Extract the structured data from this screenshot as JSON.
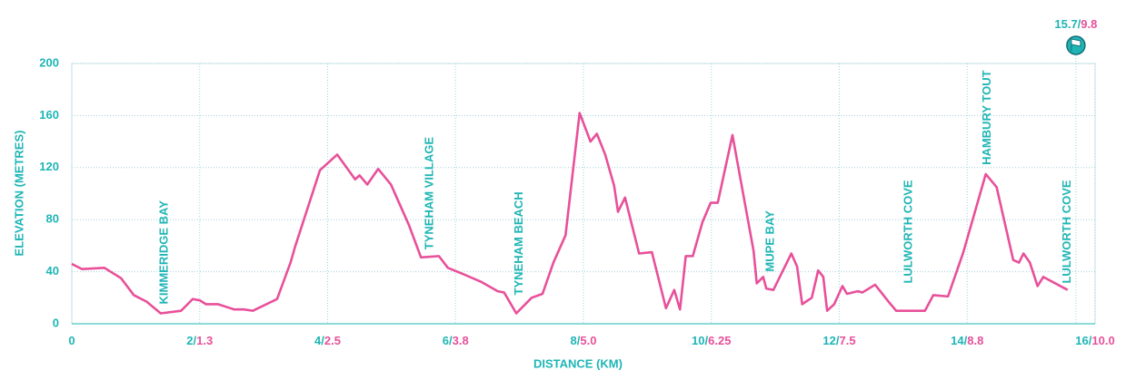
{
  "chart_data": {
    "type": "line",
    "x_label": "DISTANCE (KM)",
    "y_label": "ELEVATION (METRES)",
    "xlim": [
      0,
      16
    ],
    "ylim": [
      0,
      200
    ],
    "xticks": [
      0,
      {
        "value": 2,
        "label": "2/"
      },
      {
        "value": 4,
        "label": "4/"
      },
      {
        "value": 6,
        "label": "6/"
      },
      {
        "value": 8,
        "label": "8/"
      },
      {
        "value": 10,
        "label": "10/"
      },
      {
        "value": 12,
        "label": "12/"
      },
      {
        "value": 14,
        "label": "14/"
      },
      {
        "value": 16,
        "label": "16/"
      }
    ],
    "xtick_miles": [
      null,
      "1.3",
      "2.5",
      "3.8",
      "5.0",
      "6.25",
      "7.5",
      "8.8",
      "10.0"
    ],
    "yticks": [
      0,
      40,
      80,
      120,
      160,
      200
    ],
    "grid": true,
    "axis_color": "#1fb5b5",
    "series": [
      {
        "name": "Elevation",
        "color": "#e8509a",
        "x": [
          0,
          0.16,
          0.51,
          0.77,
          0.97,
          1.17,
          1.39,
          1.71,
          1.89,
          2.0,
          2.1,
          2.29,
          2.54,
          2.69,
          2.83,
          3.21,
          3.42,
          3.49,
          3.88,
          4.15,
          4.43,
          4.5,
          4.62,
          4.79,
          4.99,
          5.27,
          5.46,
          5.74,
          5.88,
          6.08,
          6.41,
          6.66,
          6.76,
          6.95,
          7.19,
          7.36,
          7.53,
          7.72,
          7.94,
          8.11,
          8.21,
          8.34,
          8.48,
          8.54,
          8.65,
          8.87,
          9.07,
          9.29,
          9.42,
          9.51,
          9.6,
          9.71,
          9.86,
          9.99,
          10.1,
          10.33,
          10.66,
          10.71,
          10.81,
          10.86,
          10.97,
          11.25,
          11.34,
          11.42,
          11.57,
          11.67,
          11.75,
          11.81,
          11.92,
          12.05,
          12.12,
          12.29,
          12.36,
          12.56,
          12.77,
          12.89,
          13.34,
          13.47,
          13.7,
          13.94,
          14.29,
          14.46,
          14.72,
          14.81,
          14.88,
          14.98,
          15.1,
          15.19,
          15.57
        ],
        "values": [
          46,
          42,
          43,
          35,
          22,
          17,
          8,
          10,
          19,
          18,
          15,
          15,
          11,
          11,
          10,
          19,
          47,
          59,
          118,
          130,
          111,
          114,
          107,
          119,
          107,
          76,
          51,
          52,
          43,
          39,
          32,
          25,
          24,
          8,
          20,
          23,
          47,
          68,
          162,
          140,
          146,
          130,
          106,
          86,
          97,
          54,
          55,
          12,
          26,
          11,
          52,
          52,
          78,
          93,
          93,
          145,
          56,
          31,
          36,
          27,
          26,
          54,
          44,
          15,
          20,
          41,
          36,
          10,
          15,
          29,
          23,
          25,
          24,
          30,
          17,
          10,
          10,
          22,
          21,
          55,
          115,
          105,
          49,
          47,
          54,
          47,
          29,
          36,
          26
        ]
      }
    ],
    "annotations": [
      {
        "text": "KIMMERIDGE BAY",
        "x": 1.45,
        "y": 15
      },
      {
        "text": "TYNEHAM VILLAGE",
        "x": 5.6,
        "y": 57
      },
      {
        "text": "TYNEHAM BEACH",
        "x": 7.0,
        "y": 22
      },
      {
        "text": "MUPE BAY",
        "x": 10.93,
        "y": 40
      },
      {
        "text": "LULWORTH COVE",
        "x": 13.09,
        "y": 31
      },
      {
        "text": "HAMBURY TOUT",
        "x": 14.32,
        "y": 122
      },
      {
        "text": "LULWORTH COVE",
        "x": 15.57,
        "y": 31
      }
    ],
    "finish": {
      "x": 15.7,
      "label": "15.7/",
      "miles": "9.8"
    }
  }
}
